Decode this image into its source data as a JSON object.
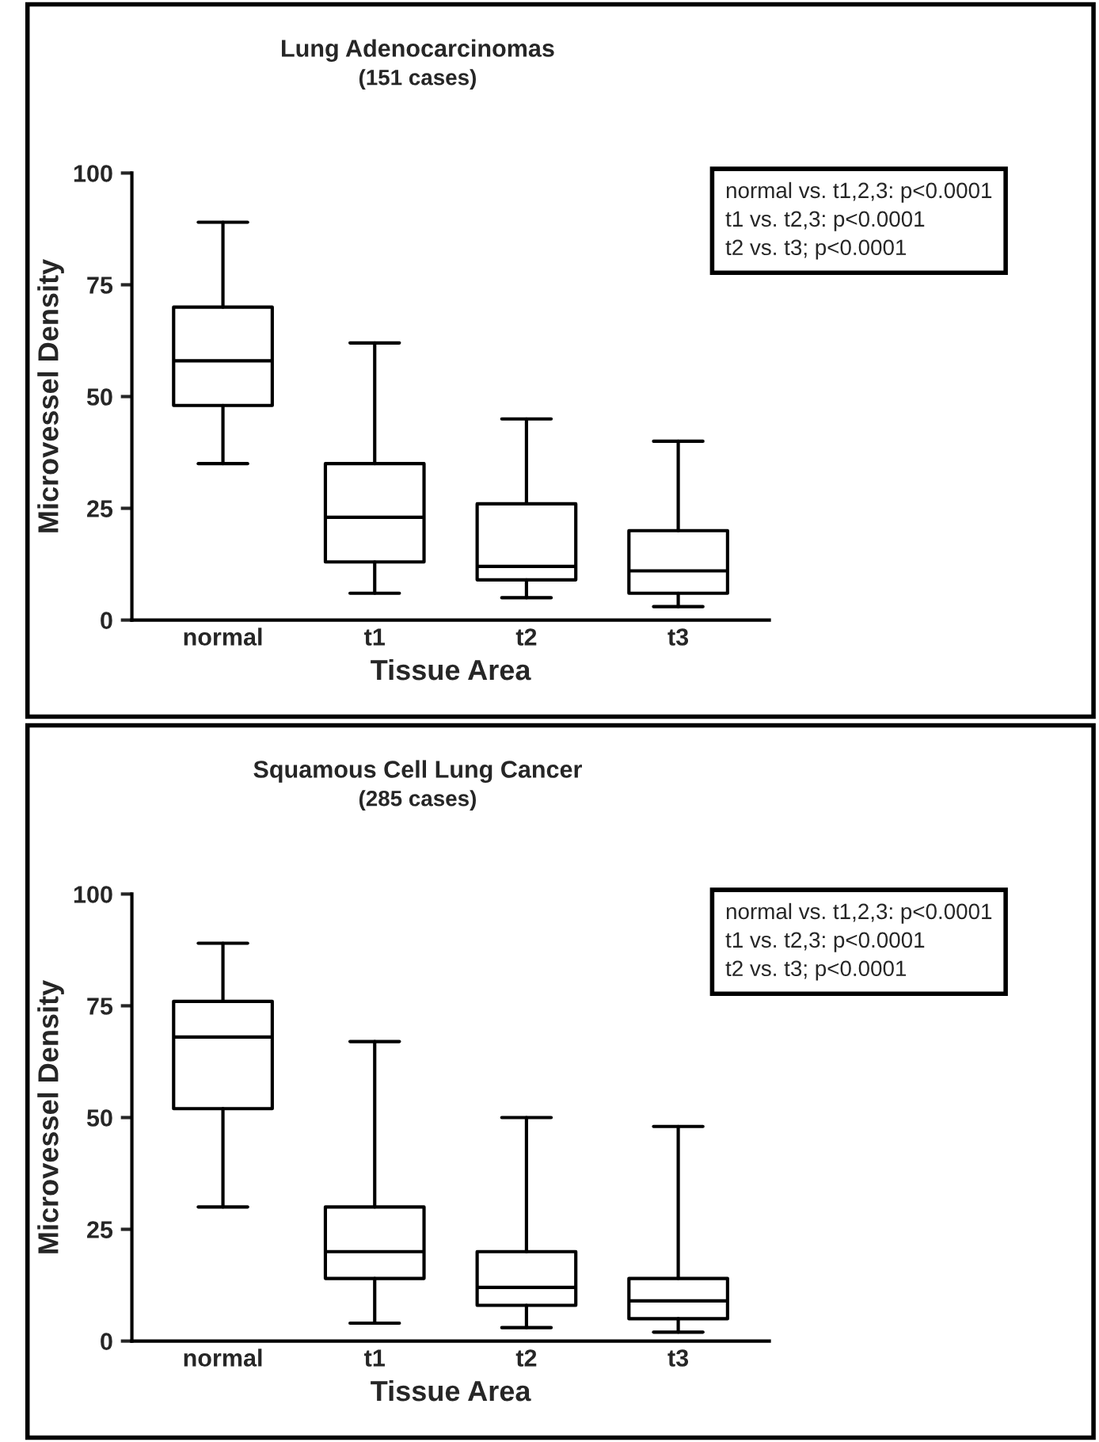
{
  "chart_data": [
    {
      "type": "box",
      "title": "Lung Adenocarcinomas",
      "subtitle": "(151 cases)",
      "xlabel": "Tissue Area",
      "ylabel": "Microvessel Density",
      "categories": [
        "normal",
        "t1",
        "t2",
        "t3"
      ],
      "boxes": [
        {
          "low": 35,
          "q1": 48,
          "median": 58,
          "q3": 70,
          "high": 89
        },
        {
          "low": 6,
          "q1": 13,
          "median": 23,
          "q3": 35,
          "high": 62
        },
        {
          "low": 5,
          "q1": 9,
          "median": 12,
          "q3": 26,
          "high": 45
        },
        {
          "low": 3,
          "q1": 6,
          "median": 11,
          "q3": 20,
          "high": 40
        }
      ],
      "ylim": [
        0,
        100
      ],
      "yticks": [
        0,
        25,
        50,
        75,
        100
      ],
      "grid": false,
      "annotations": [
        "normal vs. t1,2,3: p<0.0001",
        "t1 vs. t2,3: p<0.0001",
        "t2 vs. t3; p<0.0001"
      ]
    },
    {
      "type": "box",
      "title": "Squamous Cell Lung Cancer",
      "subtitle": "(285 cases)",
      "xlabel": "Tissue Area",
      "ylabel": "Microvessel Density",
      "categories": [
        "normal",
        "t1",
        "t2",
        "t3"
      ],
      "boxes": [
        {
          "low": 30,
          "q1": 52,
          "median": 68,
          "q3": 76,
          "high": 89
        },
        {
          "low": 4,
          "q1": 14,
          "median": 20,
          "q3": 30,
          "high": 67
        },
        {
          "low": 3,
          "q1": 8,
          "median": 12,
          "q3": 20,
          "high": 50
        },
        {
          "low": 2,
          "q1": 5,
          "median": 9,
          "q3": 14,
          "high": 48
        }
      ],
      "ylim": [
        0,
        100
      ],
      "yticks": [
        0,
        25,
        50,
        75,
        100
      ],
      "grid": false,
      "annotations": [
        "normal vs. t1,2,3: p<0.0001",
        "t1 vs. t2,3: p<0.0001",
        "t2 vs. t3; p<0.0001"
      ]
    }
  ]
}
